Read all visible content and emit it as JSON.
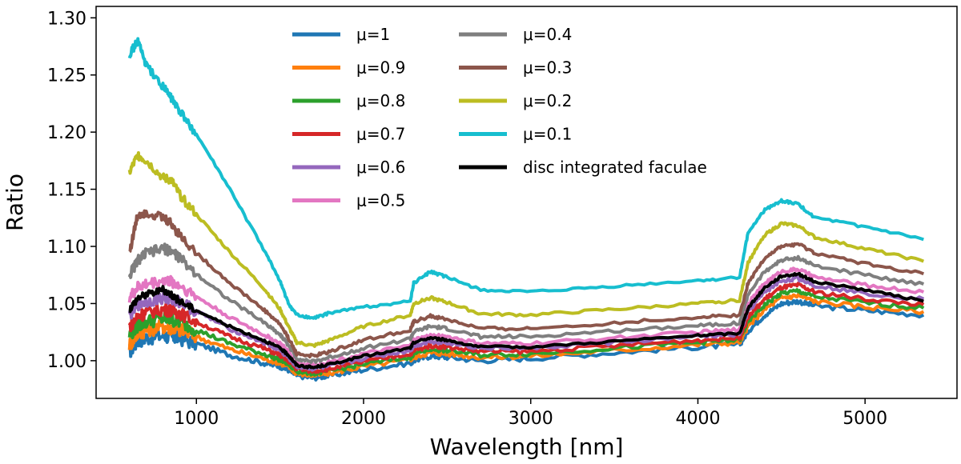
{
  "chart_data": {
    "type": "line",
    "title": "",
    "xlabel": "Wavelength [nm]",
    "ylabel": "Ratio",
    "xlim": [
      400,
      5550
    ],
    "ylim": [
      0.967,
      1.31
    ],
    "xticks": [
      1000,
      2000,
      3000,
      4000,
      5000
    ],
    "xtick_labels": [
      "1000",
      "2000",
      "3000",
      "4000",
      "5000"
    ],
    "yticks": [
      1.0,
      1.05,
      1.1,
      1.15,
      1.2,
      1.25,
      1.3
    ],
    "ytick_labels": [
      "1.00",
      "1.05",
      "1.10",
      "1.15",
      "1.20",
      "1.25",
      "1.30"
    ],
    "legend_position": "top-center",
    "x": [
      600,
      650,
      700,
      800,
      850,
      900,
      1000,
      1200,
      1400,
      1500,
      1550,
      1600,
      1700,
      1800,
      2000,
      2280,
      2300,
      2400,
      2500,
      2700,
      3000,
      3500,
      4000,
      4250,
      4300,
      4400,
      4500,
      4600,
      4700,
      5000,
      5350
    ],
    "series": [
      {
        "name": "μ=1",
        "color": "#1f77b4",
        "values": [
          1.008,
          1.018,
          1.02,
          1.022,
          1.021,
          1.02,
          1.015,
          1.005,
          0.998,
          0.995,
          0.992,
          0.987,
          0.985,
          0.987,
          0.992,
          0.998,
          1.0,
          1.004,
          1.003,
          1.0,
          1.002,
          1.007,
          1.012,
          1.014,
          1.026,
          1.04,
          1.05,
          1.052,
          1.048,
          1.044,
          1.04
        ]
      },
      {
        "name": "μ=0.9",
        "color": "#ff7f0e",
        "values": [
          1.014,
          1.024,
          1.027,
          1.03,
          1.029,
          1.027,
          1.021,
          1.01,
          1.002,
          0.998,
          0.995,
          0.989,
          0.987,
          0.989,
          0.995,
          1.001,
          1.003,
          1.007,
          1.006,
          1.003,
          1.004,
          1.009,
          1.014,
          1.016,
          1.03,
          1.045,
          1.055,
          1.057,
          1.052,
          1.047,
          1.043
        ]
      },
      {
        "name": "μ=0.8",
        "color": "#2ca02c",
        "values": [
          1.022,
          1.031,
          1.034,
          1.037,
          1.036,
          1.034,
          1.027,
          1.015,
          1.006,
          1.001,
          0.997,
          0.991,
          0.989,
          0.991,
          0.997,
          1.003,
          1.006,
          1.01,
          1.009,
          1.005,
          1.006,
          1.011,
          1.016,
          1.018,
          1.034,
          1.049,
          1.059,
          1.061,
          1.056,
          1.051,
          1.046
        ]
      },
      {
        "name": "μ=0.7",
        "color": "#d62728",
        "values": [
          1.03,
          1.039,
          1.042,
          1.045,
          1.044,
          1.042,
          1.034,
          1.021,
          1.011,
          1.005,
          1.0,
          0.993,
          0.991,
          0.993,
          0.999,
          1.006,
          1.009,
          1.013,
          1.012,
          1.008,
          1.008,
          1.013,
          1.018,
          1.02,
          1.038,
          1.054,
          1.064,
          1.066,
          1.06,
          1.054,
          1.049
        ]
      },
      {
        "name": "μ=0.6",
        "color": "#9467bd",
        "values": [
          1.04,
          1.049,
          1.052,
          1.055,
          1.054,
          1.052,
          1.043,
          1.028,
          1.016,
          1.009,
          1.003,
          0.995,
          0.993,
          0.995,
          1.002,
          1.009,
          1.013,
          1.017,
          1.016,
          1.011,
          1.011,
          1.016,
          1.021,
          1.023,
          1.043,
          1.06,
          1.07,
          1.072,
          1.066,
          1.059,
          1.054
        ]
      },
      {
        "name": "μ=0.5",
        "color": "#e377c2",
        "values": [
          1.055,
          1.064,
          1.067,
          1.07,
          1.069,
          1.066,
          1.056,
          1.038,
          1.023,
          1.015,
          1.008,
          0.998,
          0.996,
          0.999,
          1.006,
          1.013,
          1.018,
          1.022,
          1.021,
          1.015,
          1.015,
          1.02,
          1.025,
          1.027,
          1.05,
          1.068,
          1.078,
          1.08,
          1.073,
          1.066,
          1.06
        ]
      },
      {
        "name": "μ=0.4",
        "color": "#7f7f7f",
        "values": [
          1.075,
          1.088,
          1.094,
          1.098,
          1.096,
          1.09,
          1.076,
          1.053,
          1.034,
          1.023,
          1.014,
          1.002,
          0.999,
          1.003,
          1.011,
          1.019,
          1.025,
          1.03,
          1.028,
          1.021,
          1.021,
          1.026,
          1.031,
          1.033,
          1.058,
          1.078,
          1.088,
          1.09,
          1.083,
          1.075,
          1.067
        ]
      },
      {
        "name": "μ=0.3",
        "color": "#8c564b",
        "values": [
          1.095,
          1.128,
          1.13,
          1.125,
          1.12,
          1.11,
          1.094,
          1.068,
          1.045,
          1.032,
          1.02,
          1.006,
          1.004,
          1.008,
          1.018,
          1.027,
          1.034,
          1.039,
          1.036,
          1.028,
          1.028,
          1.033,
          1.038,
          1.04,
          1.068,
          1.09,
          1.1,
          1.102,
          1.094,
          1.085,
          1.076
        ]
      },
      {
        "name": "μ=0.2",
        "color": "#bcbd22",
        "values": [
          1.165,
          1.18,
          1.175,
          1.16,
          1.158,
          1.145,
          1.128,
          1.095,
          1.064,
          1.045,
          1.03,
          1.016,
          1.013,
          1.018,
          1.03,
          1.04,
          1.05,
          1.055,
          1.051,
          1.041,
          1.04,
          1.045,
          1.05,
          1.053,
          1.086,
          1.11,
          1.12,
          1.118,
          1.108,
          1.098,
          1.087
        ]
      },
      {
        "name": "μ=0.1",
        "color": "#17becf",
        "values": [
          1.268,
          1.28,
          1.258,
          1.24,
          1.23,
          1.218,
          1.198,
          1.15,
          1.098,
          1.07,
          1.05,
          1.04,
          1.037,
          1.042,
          1.047,
          1.052,
          1.068,
          1.078,
          1.073,
          1.062,
          1.06,
          1.065,
          1.07,
          1.073,
          1.112,
          1.132,
          1.14,
          1.137,
          1.125,
          1.117,
          1.106
        ]
      },
      {
        "name": "disc integrated faculae",
        "color": "#000000",
        "values": [
          1.045,
          1.055,
          1.058,
          1.062,
          1.058,
          1.052,
          1.044,
          1.03,
          1.018,
          1.011,
          1.005,
          0.996,
          0.994,
          0.997,
          1.004,
          1.011,
          1.016,
          1.02,
          1.018,
          1.012,
          1.012,
          1.017,
          1.022,
          1.024,
          1.046,
          1.064,
          1.074,
          1.076,
          1.069,
          1.062,
          1.052
        ]
      }
    ]
  }
}
